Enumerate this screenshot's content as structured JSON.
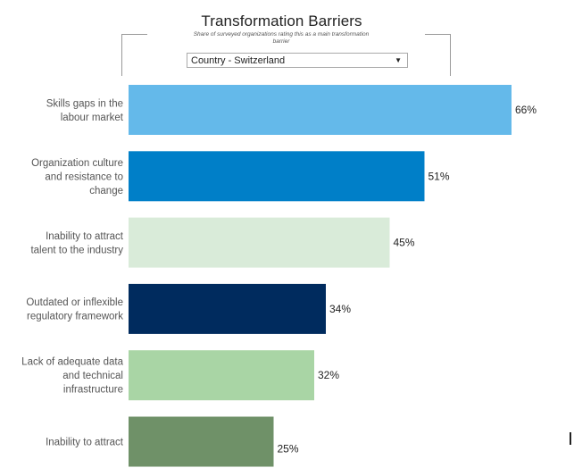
{
  "header": {
    "title": "Transformation Barriers",
    "subtitle": "Share of surveyed organizations rating this as a main transformation barrier",
    "dropdown_value": "Country - Switzerland",
    "dropdown_caret": "▼"
  },
  "chart_data": {
    "type": "bar",
    "orientation": "horizontal",
    "title": "Transformation Barriers",
    "subtitle": "Share of surveyed organizations rating this as a main transformation barrier",
    "categories": [
      [
        "Skills gaps in the",
        "labour market"
      ],
      [
        "Organization culture",
        "and resistance to",
        "change"
      ],
      [
        "Inability to attract",
        "talent to the industry"
      ],
      [
        "Outdated or inflexible",
        "regulatory framework"
      ],
      [
        "Lack of adequate data",
        "and technical",
        "infrastructure"
      ],
      [
        "Inability to attract"
      ]
    ],
    "values": [
      66,
      51,
      45,
      34,
      32,
      25
    ],
    "value_labels": [
      "66%",
      "51%",
      "45%",
      "34%",
      "32%",
      "25%"
    ],
    "colors": [
      "#64b9ea",
      "#007fc8",
      "#d9ebd9",
      "#002b5e",
      "#a9d5a5",
      "#6f9168"
    ],
    "unit": "%",
    "xlim": [
      0,
      66
    ],
    "grid": false,
    "legend": "none"
  }
}
